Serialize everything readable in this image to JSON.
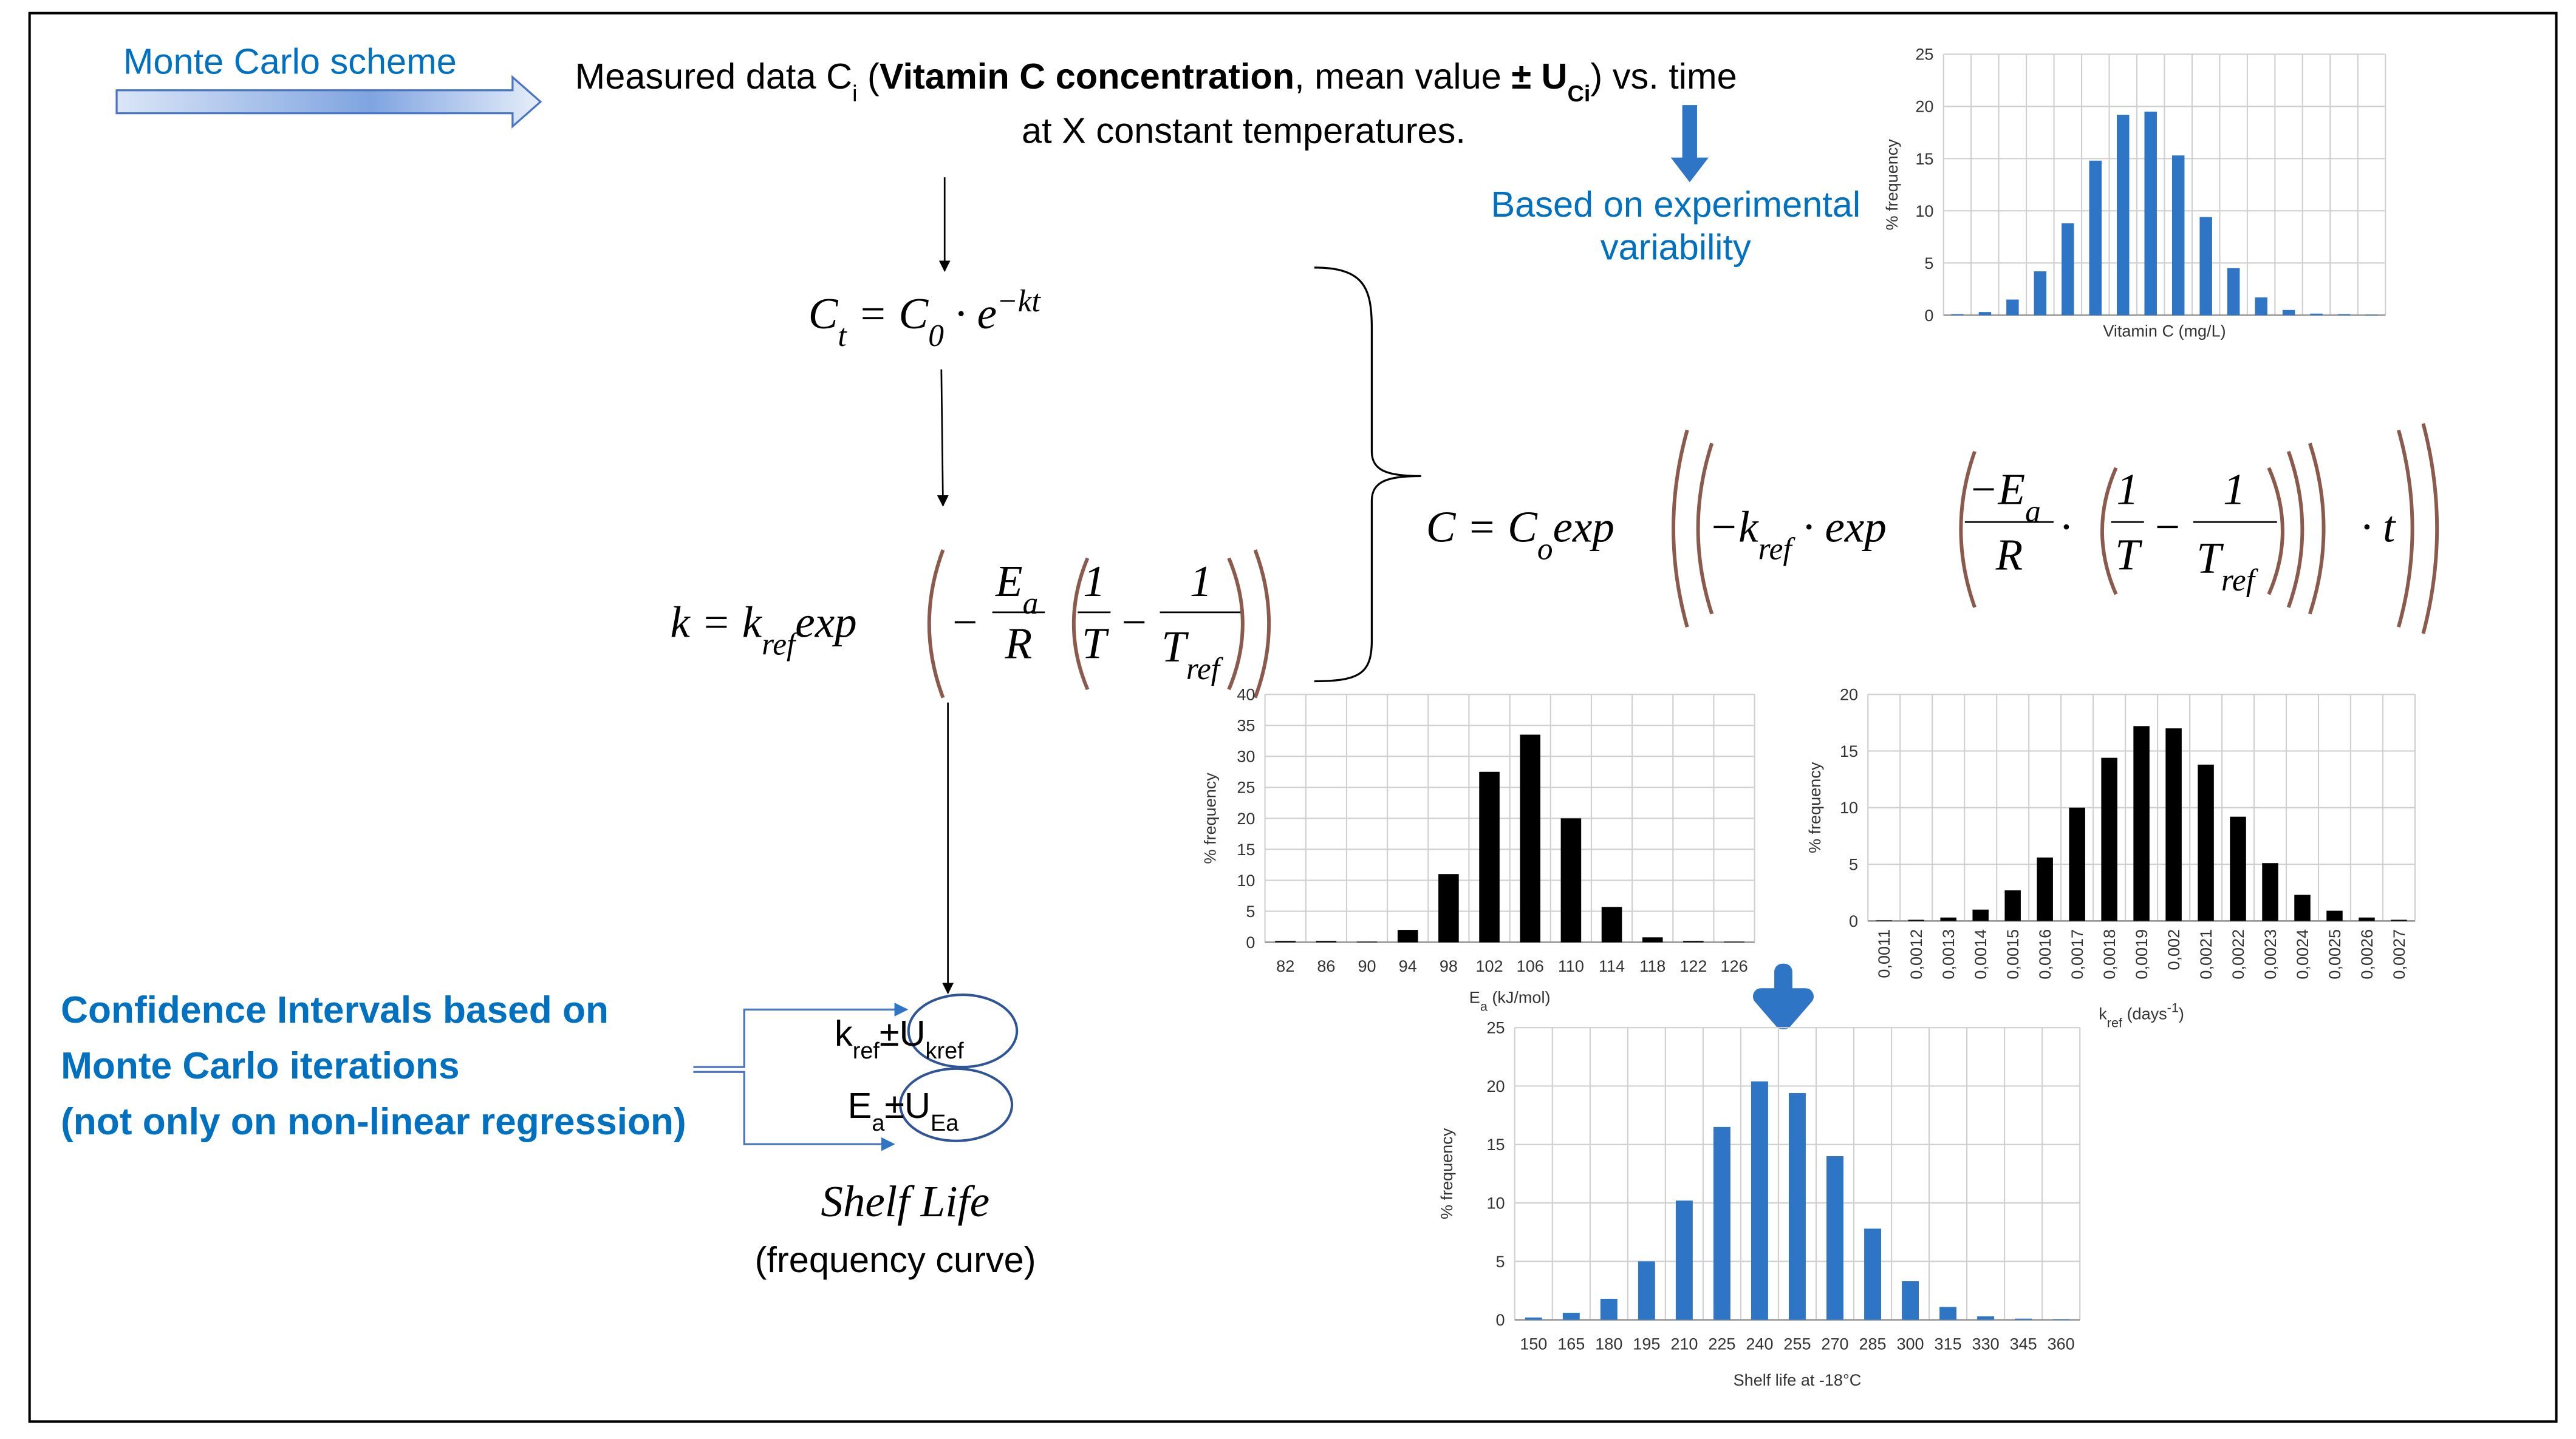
{
  "scheme_label": "Monte Carlo scheme",
  "measured": {
    "line1": [
      "Measured data C",
      "i",
      " (",
      "Vitamin C concentration",
      ", mean value ",
      "± U",
      "Ci",
      ") vs. time"
    ],
    "line2": "at X constant temperatures."
  },
  "variability": [
    "Based on experimental",
    "variability"
  ],
  "equations": {
    "decay": [
      "C",
      "t",
      " = C",
      "0",
      " · e",
      "−kt"
    ],
    "rate": {
      "lhs": [
        "k = k",
        "ref",
        "exp"
      ],
      "minus": "−",
      "ea": [
        "E",
        "a"
      ],
      "r": "R",
      "one": "1",
      "t": "T",
      "minus2": "−",
      "one2": "1",
      "tref": [
        "T",
        "ref"
      ]
    },
    "combined": {
      "lhs": [
        "C = C",
        "o",
        "exp"
      ],
      "k": [
        "−k",
        "ref",
        " · exp"
      ],
      "ea": [
        "−E",
        "a"
      ],
      "r": "R",
      "dot": "·",
      "one": "1",
      "t": "T",
      "minus": "−",
      "one2": "1",
      "tref": [
        "T",
        "ref"
      ],
      "end": "· t"
    }
  },
  "confidence": [
    "Confidence Intervals based on",
    "Monte Carlo iterations",
    "(not only on non-linear regression)"
  ],
  "kref_u": [
    "k",
    "ref",
    "±U",
    "kref"
  ],
  "ea_u": [
    "E",
    "a",
    "±U",
    "Ea"
  ],
  "shelf_life": [
    "Shelf Life",
    "(frequency curve)"
  ],
  "chart_data": [
    {
      "type": "bar",
      "ylabel": "% frequency",
      "xlabel": [
        "Vitamin C (mg/L)"
      ],
      "color": "#2e75c6",
      "grid": true,
      "categories": [
        null,
        null,
        null,
        null,
        null,
        null,
        null,
        null,
        null,
        null,
        null,
        null,
        null,
        null,
        null,
        null
      ],
      "values": [
        0.1,
        0.3,
        1.5,
        4.2,
        8.8,
        14.8,
        19.2,
        19.5,
        15.3,
        9.4,
        4.5,
        1.7,
        0.5,
        0.15,
        0.1,
        0.05
      ],
      "ylim": [
        0,
        25
      ],
      "yticks": [
        0,
        5,
        10,
        15,
        20,
        25
      ]
    },
    {
      "type": "bar",
      "ylabel": "% frequency",
      "xlabel": [
        "E",
        {
          "text": "a",
          "shift": "sub"
        },
        " (kJ/mol)"
      ],
      "color": "#000000",
      "grid": true,
      "categories": [
        82,
        86,
        90,
        94,
        98,
        102,
        106,
        110,
        114,
        118,
        122,
        126
      ],
      "values": [
        0.2,
        0.2,
        0.1,
        2,
        11,
        27.5,
        33.5,
        20,
        5.7,
        0.8,
        0.2,
        0.1
      ],
      "ylim": [
        0,
        40
      ],
      "yticks": [
        0,
        5,
        10,
        15,
        20,
        25,
        30,
        35,
        40
      ]
    },
    {
      "type": "bar",
      "ylabel": "% frequency",
      "xlabel": [
        "k",
        {
          "text": "ref",
          "shift": "sub"
        },
        " (days",
        {
          "text": "-1",
          "shift": "super"
        },
        ")"
      ],
      "color": "#000000",
      "grid": true,
      "categories": [
        "0,0011",
        "0,0012",
        "0,0013",
        "0,0014",
        "0,0015",
        "0,0016",
        "0,0017",
        "0,0018",
        "0,0019",
        "0,002",
        "0,0021",
        "0,0022",
        "0,0023",
        "0,0024",
        "0,0025",
        "0,0026",
        "0,0027"
      ],
      "values": [
        0.05,
        0.1,
        0.3,
        1,
        2.7,
        5.6,
        10,
        14.4,
        17.2,
        17,
        13.8,
        9.2,
        5.1,
        2.3,
        0.9,
        0.3,
        0.1
      ],
      "ylim": [
        0,
        20
      ],
      "yticks": [
        0,
        5,
        10,
        15,
        20
      ]
    },
    {
      "type": "bar",
      "ylabel": "% frequency",
      "xlabel": [
        "Shelf life at -18°C"
      ],
      "color": "#2e75c6",
      "grid": true,
      "categories": [
        150,
        165,
        180,
        195,
        210,
        225,
        240,
        255,
        270,
        285,
        300,
        315,
        330,
        345,
        360
      ],
      "values": [
        0.2,
        0.6,
        1.8,
        5,
        10.2,
        16.5,
        20.4,
        19.4,
        14,
        7.8,
        3.3,
        1.1,
        0.3,
        0.1,
        0.05
      ],
      "ylim": [
        0,
        25
      ],
      "yticks": [
        0,
        5,
        10,
        15,
        20,
        25
      ]
    }
  ]
}
